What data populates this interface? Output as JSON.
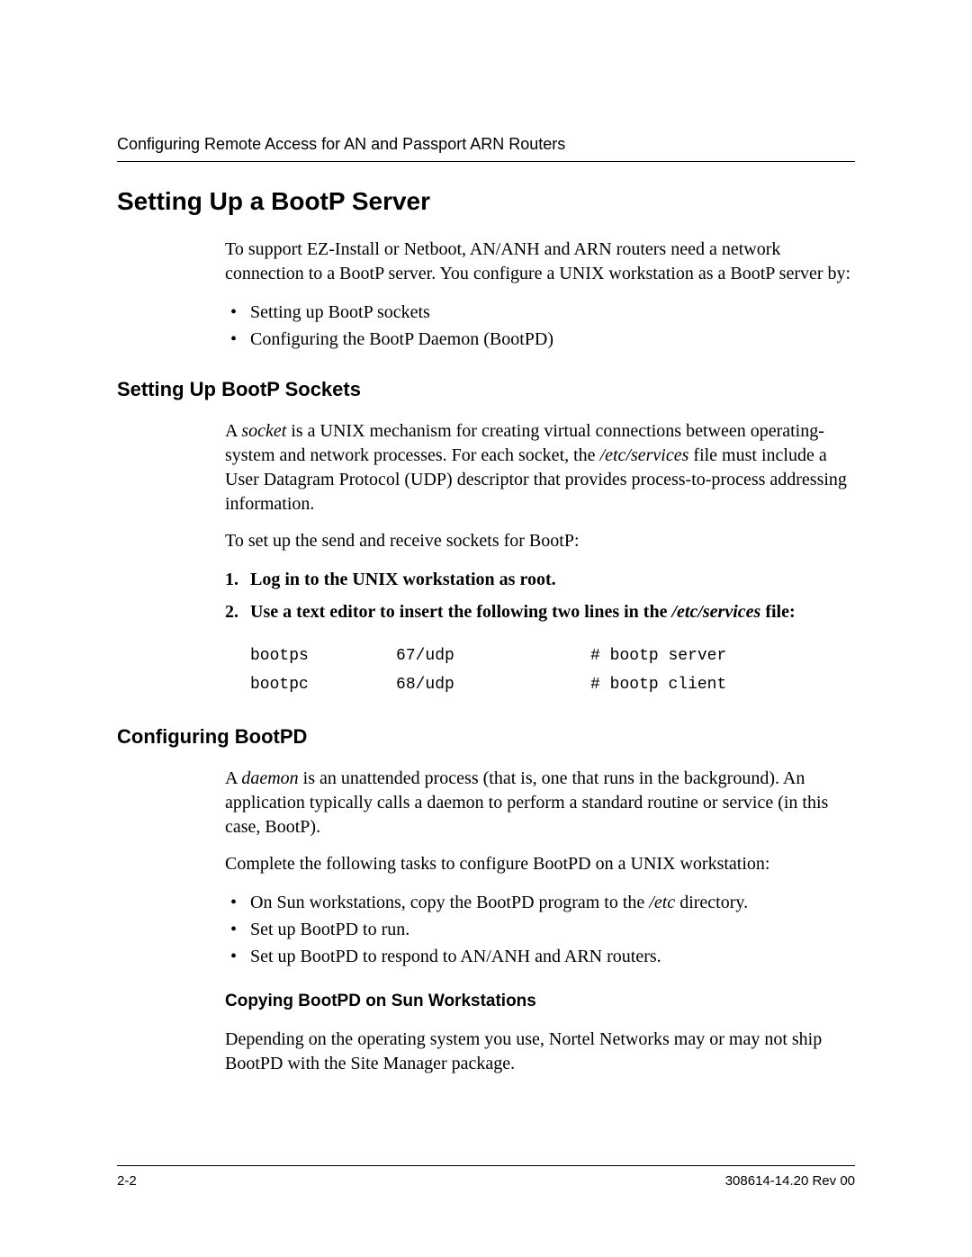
{
  "header": {
    "running_title": "Configuring Remote Access for AN and Passport ARN Routers"
  },
  "section": {
    "h1": "Setting Up a BootP Server",
    "intro": "To support EZ-Install or Netboot, AN/ANH and ARN routers need a network connection to a BootP server. You configure a UNIX workstation as a BootP server by:",
    "intro_bullets": [
      "Setting up BootP sockets",
      "Configuring the BootP Daemon (BootPD)"
    ],
    "sockets": {
      "h2": "Setting Up BootP Sockets",
      "p1_a": "A ",
      "p1_em": "socket",
      "p1_b": " is a UNIX mechanism for creating virtual connections between operating-system and network processes. For each socket, the ",
      "p1_em2": "/etc/services",
      "p1_c": " file must include a User Datagram Protocol (UDP) descriptor that provides process-to-process addressing information.",
      "p2": "To set up the send and receive sockets for BootP:",
      "step1_a": "Log in to the UNIX workstation as ",
      "step1_code": "root",
      "step1_b": ".",
      "step2_a": "Use a text editor to insert the following two lines in the ",
      "step2_em": "/etc/services",
      "step2_b": " file:",
      "code": "bootps         67/udp              # bootp server\nbootpc         68/udp              # bootp client"
    },
    "bootpd": {
      "h2": "Configuring BootPD",
      "p1_a": "A ",
      "p1_em": "daemon",
      "p1_b": " is an unattended process (that is, one that runs in the background). An application typically calls a daemon to perform a standard routine or service (in this case, BootP).",
      "p2": "Complete the following tasks to configure BootPD on a UNIX workstation:",
      "bullet1_a": "On Sun workstations, copy the BootPD program to the ",
      "bullet1_em": "/etc",
      "bullet1_b": " directory.",
      "bullet2": "Set up BootPD to run.",
      "bullet3": "Set up BootPD to respond to AN/ANH and ARN routers.",
      "h3": "Copying BootPD on Sun Workstations",
      "p3": "Depending on the operating system you use, Nortel Networks may or may not ship BootPD with the Site Manager package."
    }
  },
  "footer": {
    "page_num": "2-2",
    "doc_id": "308614-14.20 Rev 00"
  }
}
